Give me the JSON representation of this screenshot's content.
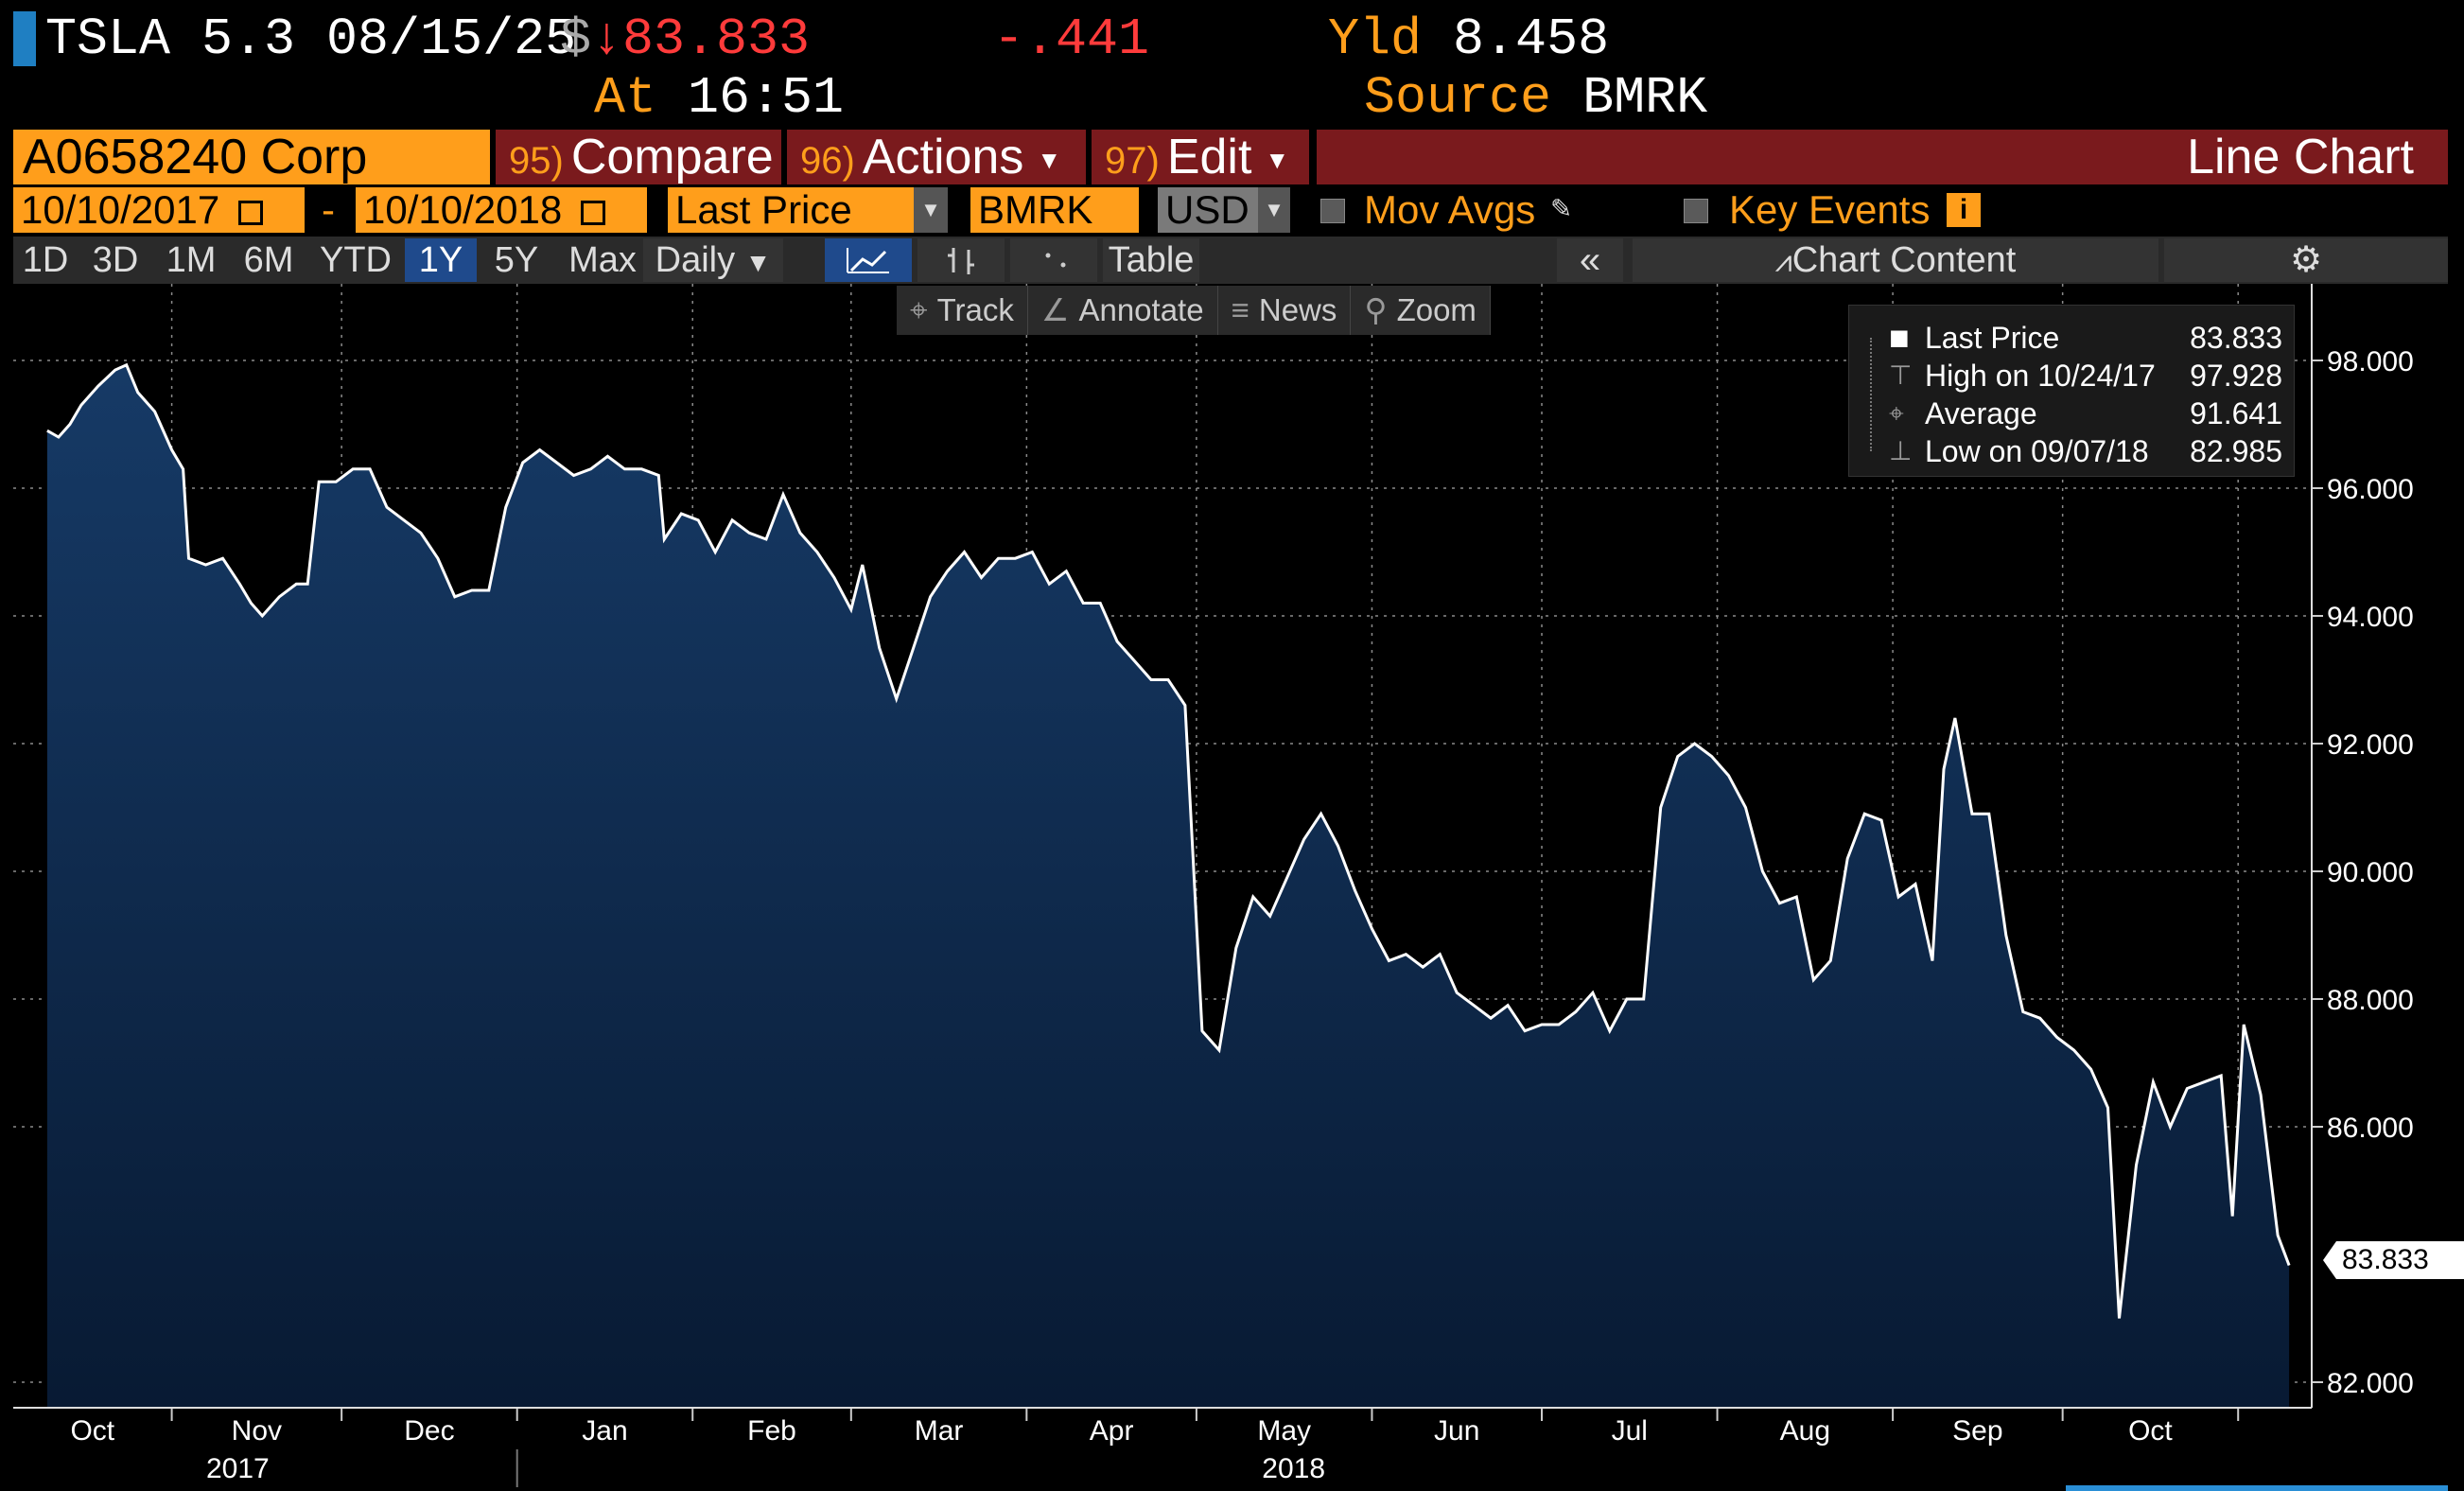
{
  "header": {
    "security": "TSLA 5.3 08/15/25",
    "currency_symbol": "$",
    "arrow": "↓",
    "price": "83.833",
    "change": "-.441",
    "yld_label": "Yld",
    "yld_value": "8.458",
    "at_label": "At",
    "time": "16:51",
    "source_label": "Source",
    "source_value": "BMRK"
  },
  "toolbar": {
    "ticker": "A0658240 Corp",
    "compare_num": "95)",
    "compare": "Compare",
    "actions_num": "96)",
    "actions": "Actions",
    "edit_num": "97)",
    "edit": "Edit",
    "chart_type": "Line Chart"
  },
  "controls": {
    "start_date": "10/10/2017",
    "dash": "-",
    "end_date": "10/10/2018",
    "field": "Last Price",
    "source": "BMRK",
    "currency": "USD",
    "mov_avgs": "Mov Avgs",
    "key_events": "Key Events"
  },
  "periods": [
    "1D",
    "3D",
    "1M",
    "6M",
    "YTD",
    "1Y",
    "5Y",
    "Max"
  ],
  "active_period": "1Y",
  "frequency": "Daily",
  "table_label": "Table",
  "chart_content_label": "Chart Content",
  "tools": [
    "Track",
    "Annotate",
    "News",
    "Zoom"
  ],
  "legend": {
    "rows": [
      {
        "label": "Last Price",
        "value": "83.833"
      },
      {
        "label": "High on 10/24/17",
        "value": "97.928"
      },
      {
        "label": "Average",
        "value": "91.641"
      },
      {
        "label": "Low on 09/07/18",
        "value": "82.985"
      }
    ]
  },
  "colors": {
    "accent": "#ff9e1b",
    "negative": "#ff3b3b",
    "area_top": "#163a66",
    "area_bottom": "#081a33",
    "line": "#ffffff"
  },
  "chart_data": {
    "type": "area",
    "title": "",
    "xlabel": "",
    "ylabel": "",
    "ylim": [
      81.6,
      99.2
    ],
    "y_ticks": [
      "82.000",
      "86.000",
      "88.000",
      "90.000",
      "92.000",
      "94.000",
      "96.000",
      "98.000"
    ],
    "last_value_label": "83.833",
    "x_ticks": [
      "Oct",
      "Nov",
      "Dec",
      "Jan",
      "Feb",
      "Mar",
      "Apr",
      "May",
      "Jun",
      "Jul",
      "Aug",
      "Sep",
      "Oct"
    ],
    "year_labels": [
      "2017",
      "2018"
    ],
    "grid": true,
    "series": [
      {
        "name": "Last Price",
        "points": [
          [
            "2017-10-10",
            96.9
          ],
          [
            "2017-10-12",
            96.8
          ],
          [
            "2017-10-14",
            97.0
          ],
          [
            "2017-10-16",
            97.3
          ],
          [
            "2017-10-19",
            97.6
          ],
          [
            "2017-10-22",
            97.85
          ],
          [
            "2017-10-24",
            97.93
          ],
          [
            "2017-10-26",
            97.5
          ],
          [
            "2017-10-29",
            97.2
          ],
          [
            "2017-11-01",
            96.6
          ],
          [
            "2017-11-03",
            96.3
          ],
          [
            "2017-11-04",
            94.9
          ],
          [
            "2017-11-07",
            94.8
          ],
          [
            "2017-11-10",
            94.9
          ],
          [
            "2017-11-13",
            94.5
          ],
          [
            "2017-11-15",
            94.2
          ],
          [
            "2017-11-17",
            94.0
          ],
          [
            "2017-11-20",
            94.3
          ],
          [
            "2017-11-23",
            94.5
          ],
          [
            "2017-11-25",
            94.5
          ],
          [
            "2017-11-27",
            96.1
          ],
          [
            "2017-11-30",
            96.1
          ],
          [
            "2017-12-03",
            96.3
          ],
          [
            "2017-12-06",
            96.3
          ],
          [
            "2017-12-09",
            95.7
          ],
          [
            "2017-12-12",
            95.5
          ],
          [
            "2017-12-15",
            95.3
          ],
          [
            "2017-12-18",
            94.9
          ],
          [
            "2017-12-21",
            94.3
          ],
          [
            "2017-12-24",
            94.4
          ],
          [
            "2017-12-27",
            94.4
          ],
          [
            "2017-12-30",
            95.7
          ],
          [
            "2018-01-02",
            96.4
          ],
          [
            "2018-01-05",
            96.6
          ],
          [
            "2018-01-08",
            96.4
          ],
          [
            "2018-01-11",
            96.2
          ],
          [
            "2018-01-14",
            96.3
          ],
          [
            "2018-01-17",
            96.5
          ],
          [
            "2018-01-20",
            96.3
          ],
          [
            "2018-01-23",
            96.3
          ],
          [
            "2018-01-26",
            96.2
          ],
          [
            "2018-01-27",
            95.2
          ],
          [
            "2018-01-30",
            95.6
          ],
          [
            "2018-02-02",
            95.5
          ],
          [
            "2018-02-05",
            95.0
          ],
          [
            "2018-02-08",
            95.5
          ],
          [
            "2018-02-11",
            95.3
          ],
          [
            "2018-02-14",
            95.2
          ],
          [
            "2018-02-17",
            95.9
          ],
          [
            "2018-02-20",
            95.3
          ],
          [
            "2018-02-23",
            95.0
          ],
          [
            "2018-02-26",
            94.6
          ],
          [
            "2018-03-01",
            94.1
          ],
          [
            "2018-03-03",
            94.8
          ],
          [
            "2018-03-06",
            93.5
          ],
          [
            "2018-03-09",
            92.7
          ],
          [
            "2018-03-12",
            93.5
          ],
          [
            "2018-03-15",
            94.3
          ],
          [
            "2018-03-18",
            94.7
          ],
          [
            "2018-03-21",
            95.0
          ],
          [
            "2018-03-24",
            94.6
          ],
          [
            "2018-03-27",
            94.9
          ],
          [
            "2018-03-30",
            94.9
          ],
          [
            "2018-04-02",
            95.0
          ],
          [
            "2018-04-05",
            94.5
          ],
          [
            "2018-04-08",
            94.7
          ],
          [
            "2018-04-11",
            94.2
          ],
          [
            "2018-04-14",
            94.2
          ],
          [
            "2018-04-17",
            93.6
          ],
          [
            "2018-04-20",
            93.3
          ],
          [
            "2018-04-23",
            93.0
          ],
          [
            "2018-04-26",
            93.0
          ],
          [
            "2018-04-29",
            92.6
          ],
          [
            "2018-05-02",
            87.5
          ],
          [
            "2018-05-05",
            87.2
          ],
          [
            "2018-05-08",
            88.8
          ],
          [
            "2018-05-11",
            89.6
          ],
          [
            "2018-05-14",
            89.3
          ],
          [
            "2018-05-17",
            89.9
          ],
          [
            "2018-05-20",
            90.5
          ],
          [
            "2018-05-23",
            90.9
          ],
          [
            "2018-05-26",
            90.4
          ],
          [
            "2018-05-29",
            89.7
          ],
          [
            "2018-06-01",
            89.1
          ],
          [
            "2018-06-04",
            88.6
          ],
          [
            "2018-06-07",
            88.7
          ],
          [
            "2018-06-10",
            88.5
          ],
          [
            "2018-06-13",
            88.7
          ],
          [
            "2018-06-16",
            88.1
          ],
          [
            "2018-06-19",
            87.9
          ],
          [
            "2018-06-22",
            87.7
          ],
          [
            "2018-06-25",
            87.9
          ],
          [
            "2018-06-28",
            87.5
          ],
          [
            "2018-07-01",
            87.6
          ],
          [
            "2018-07-04",
            87.6
          ],
          [
            "2018-07-07",
            87.8
          ],
          [
            "2018-07-10",
            88.1
          ],
          [
            "2018-07-13",
            87.5
          ],
          [
            "2018-07-16",
            88.0
          ],
          [
            "2018-07-19",
            88.0
          ],
          [
            "2018-07-22",
            91.0
          ],
          [
            "2018-07-25",
            91.8
          ],
          [
            "2018-07-28",
            92.0
          ],
          [
            "2018-07-31",
            91.8
          ],
          [
            "2018-08-03",
            91.5
          ],
          [
            "2018-08-06",
            91.0
          ],
          [
            "2018-08-09",
            90.0
          ],
          [
            "2018-08-12",
            89.5
          ],
          [
            "2018-08-15",
            89.6
          ],
          [
            "2018-08-18",
            88.3
          ],
          [
            "2018-08-21",
            88.6
          ],
          [
            "2018-08-24",
            90.2
          ],
          [
            "2018-08-27",
            90.9
          ],
          [
            "2018-08-30",
            90.8
          ],
          [
            "2018-09-02",
            89.6
          ],
          [
            "2018-09-05",
            89.8
          ],
          [
            "2018-09-08",
            88.6
          ],
          [
            "2018-09-10",
            91.6
          ],
          [
            "2018-09-12",
            92.4
          ],
          [
            "2018-09-15",
            90.9
          ],
          [
            "2018-09-18",
            90.9
          ],
          [
            "2018-09-21",
            89.0
          ],
          [
            "2018-09-24",
            87.8
          ],
          [
            "2018-09-27",
            87.7
          ],
          [
            "2018-09-30",
            87.4
          ],
          [
            "2018-10-03",
            87.2
          ],
          [
            "2018-10-06",
            86.9
          ],
          [
            "2018-10-09",
            86.3
          ],
          [
            "2018-10-11",
            83.0
          ],
          [
            "2018-10-14",
            85.4
          ],
          [
            "2018-10-17",
            86.7
          ],
          [
            "2018-10-20",
            86.0
          ],
          [
            "2018-10-23",
            86.6
          ],
          [
            "2018-10-26",
            86.7
          ],
          [
            "2018-10-29",
            86.8
          ],
          [
            "2018-10-31",
            84.6
          ],
          [
            "2018-11-02",
            87.6
          ],
          [
            "2018-11-05",
            86.5
          ],
          [
            "2018-11-08",
            84.3
          ],
          [
            "2018-11-10",
            83.83
          ]
        ]
      }
    ]
  }
}
